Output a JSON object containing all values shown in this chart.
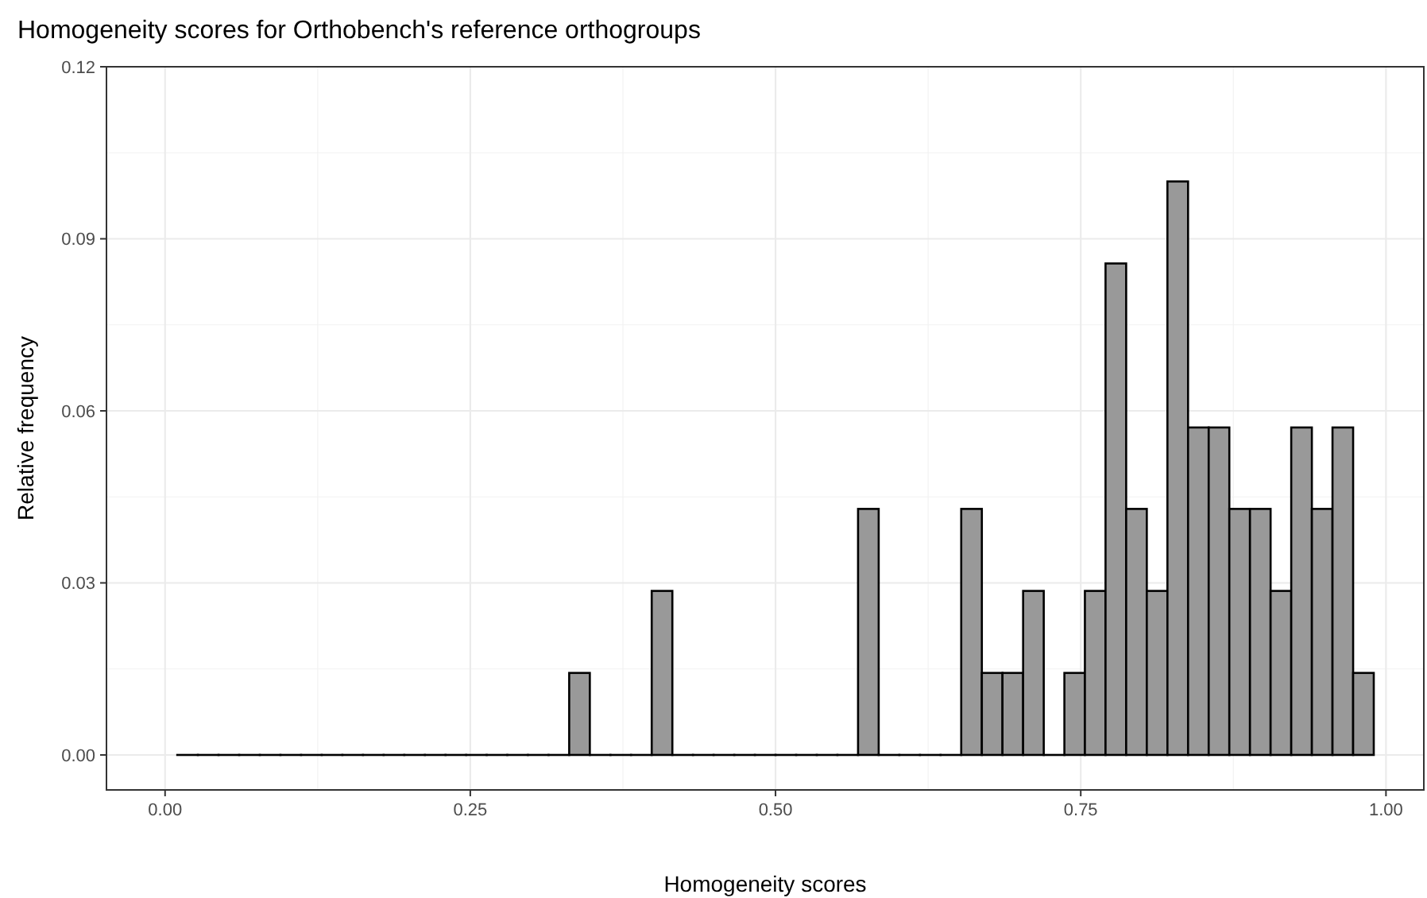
{
  "chart_data": {
    "type": "histogram",
    "title": "Homogeneity scores for Orthobench's reference orthogroups",
    "xlabel": "Homogeneity scores",
    "ylabel": "Relative frequency",
    "bins": [
      0.01,
      0.0269,
      0.0438,
      0.0607,
      0.0776,
      0.0945,
      0.1114,
      0.1283,
      0.1452,
      0.1621,
      0.179,
      0.1959,
      0.2128,
      0.2297,
      0.2466,
      0.2634,
      0.2803,
      0.2972,
      0.3141,
      0.331,
      0.3479,
      0.3648,
      0.3817,
      0.3986,
      0.4155,
      0.4324,
      0.4493,
      0.4662,
      0.4831,
      0.5,
      0.5169,
      0.5338,
      0.5507,
      0.5676,
      0.5845,
      0.6014,
      0.6183,
      0.6352,
      0.6521,
      0.669,
      0.6859,
      0.7028,
      0.7197,
      0.7366,
      0.7534,
      0.7703,
      0.7872,
      0.8041,
      0.821,
      0.8379,
      0.8548,
      0.8717,
      0.8886,
      0.9055,
      0.9224,
      0.9393,
      0.9562,
      0.9731,
      0.99
    ],
    "values": [
      0,
      0,
      0,
      0,
      0,
      0,
      0,
      0,
      0,
      0,
      0,
      0,
      0,
      0,
      0,
      0,
      0,
      0,
      0,
      0.0143,
      0,
      0,
      0,
      0.0286,
      0,
      0,
      0,
      0,
      0,
      0,
      0,
      0,
      0,
      0.0429,
      0,
      0,
      0,
      0,
      0.0429,
      0.0143,
      0.0143,
      0.0286,
      0,
      0.0143,
      0.0286,
      0.0857,
      0.0429,
      0.0286,
      0.1,
      0.0571,
      0.0571,
      0.0429,
      0.0429,
      0.0286,
      0.0571,
      0.0429,
      0.0571,
      0.0143
    ],
    "color": "#999999",
    "xlim": [
      -0.048,
      1.031
    ],
    "ylim": [
      -0.0061,
      0.12
    ],
    "xticks": [
      {
        "value": 0,
        "label": "0.00"
      },
      {
        "value": 0.25,
        "label": "0.25"
      },
      {
        "value": 0.5,
        "label": "0.50"
      },
      {
        "value": 0.75,
        "label": "0.75"
      },
      {
        "value": 1,
        "label": "1.00"
      }
    ],
    "yticks": [
      {
        "value": 0,
        "label": "0.00"
      },
      {
        "value": 0.03,
        "label": "0.03"
      },
      {
        "value": 0.06,
        "label": "0.06"
      },
      {
        "value": 0.09,
        "label": "0.09"
      },
      {
        "value": 0.12,
        "label": "0.12"
      }
    ],
    "grid": true
  }
}
